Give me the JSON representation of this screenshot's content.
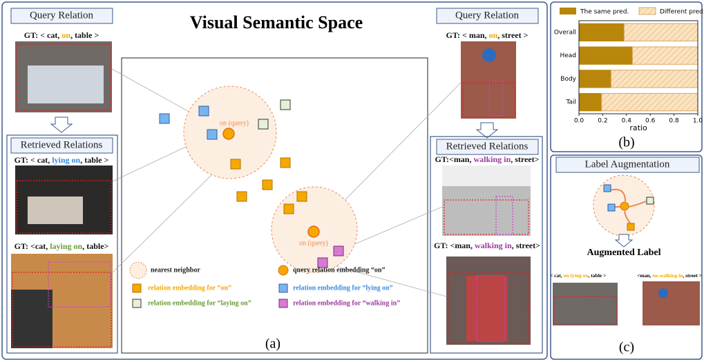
{
  "panel_a": {
    "title": "Visual Semantic Space",
    "caption": "(a)",
    "left": {
      "query_header": "Query Relation",
      "query_gt": [
        "GT: < cat, ",
        "on",
        ", table >"
      ],
      "retrieved_header": "Retrieved Relations",
      "retrieved": [
        [
          "GT: < cat, ",
          "lying on",
          ", table >"
        ],
        [
          "GT: <cat, ",
          "laying on",
          ", table>"
        ]
      ]
    },
    "right": {
      "query_header": "Query Relation",
      "query_gt": [
        "GT: < man, ",
        "on",
        ", street >"
      ],
      "retrieved_header": "Retrieved Relations",
      "retrieved": [
        [
          "GT:<man, ",
          "walking in",
          ", street>"
        ],
        [
          "GT: <man, ",
          "walking in",
          ", street>"
        ]
      ]
    },
    "query_labels": [
      "on (query)",
      "on (query)"
    ],
    "legend": [
      "nearest neighbor",
      "query relation embedding “on”",
      "relation embedding for “on”",
      "relation embedding for “lying on”",
      "relation embedding for “laying on”",
      "relation embedding for “walking in”"
    ]
  },
  "panel_b": {
    "caption": "(b)",
    "xlabel": "ratio",
    "categories": [
      "Overall",
      "Head",
      "Body",
      "Tail"
    ],
    "series": [
      {
        "name": "The same pred.",
        "color": "#b8860b",
        "values": [
          0.38,
          0.45,
          0.27,
          0.19
        ]
      },
      {
        "name": "Different pred.",
        "color": "#fbe3c0",
        "values": [
          0.62,
          0.55,
          0.73,
          0.81
        ]
      }
    ],
    "xlim": [
      0,
      1.0
    ],
    "xticks": [
      {
        "value": 0,
        "label": "0.0"
      },
      0.2,
      0.4,
      0.6,
      0.8,
      {
        "value": 1,
        "label": "1.0"
      }
    ]
  },
  "panel_c": {
    "title": "Label Augmentation",
    "subtitle": "Augmented Label",
    "caption": "(c)",
    "labels": [
      [
        "< cat, ",
        "on-lying on",
        ", table >"
      ],
      [
        "<man, ",
        "on-walking in",
        ", street >"
      ]
    ]
  }
}
